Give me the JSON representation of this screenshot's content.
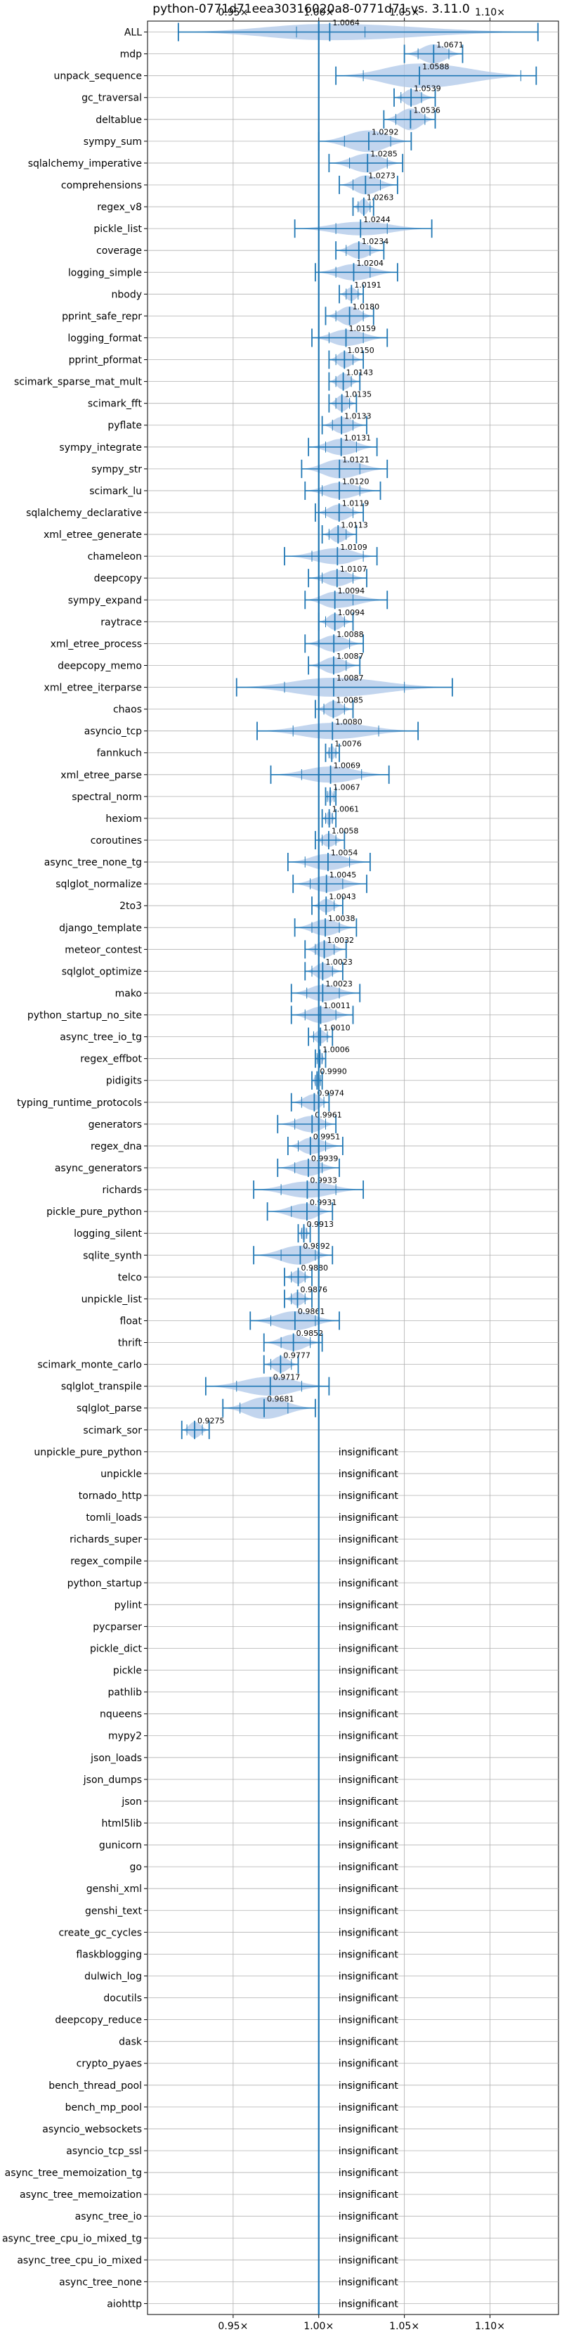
{
  "chart_data": {
    "type": "violin",
    "title": "python-0771d71eea30316020a8-0771d71 vs. 3.11.0",
    "xlabel": "",
    "ylabel": "",
    "xlim": [
      0.9,
      1.14
    ],
    "x_ticks": [
      0.95,
      1.0,
      1.05,
      1.1
    ],
    "x_tick_labels": [
      "0.95×",
      "1.00×",
      "1.05×",
      "1.10×"
    ],
    "grid": true,
    "reference_line": 1.0,
    "color": "#1f77b4",
    "fill_color": "#aec7e8",
    "insignificant_label": "insignificant",
    "benchmarks": [
      {
        "name": "ALL",
        "mean": 1.0064,
        "min": 0.918,
        "max": 1.128,
        "q1": 0.987,
        "q3": 1.027,
        "width": 0.6
      },
      {
        "name": "mdp",
        "mean": 1.0671,
        "min": 1.05,
        "max": 1.084,
        "q1": 1.058,
        "q3": 1.076,
        "width": 0.7
      },
      {
        "name": "unpack_sequence",
        "mean": 1.0588,
        "min": 1.01,
        "max": 1.127,
        "q1": 1.026,
        "q3": 1.118,
        "width": 0.9
      },
      {
        "name": "gc_traversal",
        "mean": 1.0539,
        "min": 1.044,
        "max": 1.068,
        "q1": 1.048,
        "q3": 1.06,
        "width": 0.6
      },
      {
        "name": "deltablue",
        "mean": 1.0536,
        "min": 1.038,
        "max": 1.068,
        "q1": 1.045,
        "q3": 1.062,
        "width": 0.8
      },
      {
        "name": "sympy_sum",
        "mean": 1.0292,
        "min": 1.0,
        "max": 1.054,
        "q1": 1.015,
        "q3": 1.042,
        "width": 0.8
      },
      {
        "name": "sqlalchemy_imperative",
        "mean": 1.0285,
        "min": 1.006,
        "max": 1.049,
        "q1": 1.018,
        "q3": 1.04,
        "width": 0.7
      },
      {
        "name": "comprehensions",
        "mean": 1.0273,
        "min": 1.012,
        "max": 1.046,
        "q1": 1.02,
        "q3": 1.036,
        "width": 0.7
      },
      {
        "name": "regex_v8",
        "mean": 1.0263,
        "min": 1.02,
        "max": 1.032,
        "q1": 1.023,
        "q3": 1.03,
        "width": 0.6
      },
      {
        "name": "pickle_list",
        "mean": 1.0244,
        "min": 0.986,
        "max": 1.066,
        "q1": 1.01,
        "q3": 1.04,
        "width": 0.5
      },
      {
        "name": "coverage",
        "mean": 1.0234,
        "min": 1.01,
        "max": 1.038,
        "q1": 1.016,
        "q3": 1.03,
        "width": 0.6
      },
      {
        "name": "logging_simple",
        "mean": 1.0204,
        "min": 0.998,
        "max": 1.046,
        "q1": 1.01,
        "q3": 1.03,
        "width": 0.6
      },
      {
        "name": "nbody",
        "mean": 1.0191,
        "min": 1.012,
        "max": 1.026,
        "q1": 1.016,
        "q3": 1.023,
        "width": 0.5
      },
      {
        "name": "pprint_safe_repr",
        "mean": 1.018,
        "min": 1.004,
        "max": 1.032,
        "q1": 1.01,
        "q3": 1.026,
        "width": 0.7
      },
      {
        "name": "logging_format",
        "mean": 1.0159,
        "min": 0.996,
        "max": 1.04,
        "q1": 1.006,
        "q3": 1.026,
        "width": 0.6
      },
      {
        "name": "pprint_pformat",
        "mean": 1.015,
        "min": 1.006,
        "max": 1.026,
        "q1": 1.01,
        "q3": 1.02,
        "width": 0.6
      },
      {
        "name": "scimark_sparse_mat_mult",
        "mean": 1.0143,
        "min": 1.006,
        "max": 1.024,
        "q1": 1.01,
        "q3": 1.019,
        "width": 0.6
      },
      {
        "name": "scimark_fft",
        "mean": 1.0135,
        "min": 1.006,
        "max": 1.022,
        "q1": 1.01,
        "q3": 1.018,
        "width": 0.6
      },
      {
        "name": "pyflate",
        "mean": 1.0133,
        "min": 1.002,
        "max": 1.028,
        "q1": 1.008,
        "q3": 1.02,
        "width": 0.6
      },
      {
        "name": "sympy_integrate",
        "mean": 1.0131,
        "min": 0.994,
        "max": 1.034,
        "q1": 1.004,
        "q3": 1.022,
        "width": 0.6
      },
      {
        "name": "sympy_str",
        "mean": 1.0121,
        "min": 0.99,
        "max": 1.04,
        "q1": 1.0,
        "q3": 1.024,
        "width": 0.7
      },
      {
        "name": "scimark_lu",
        "mean": 1.012,
        "min": 0.992,
        "max": 1.036,
        "q1": 1.002,
        "q3": 1.024,
        "width": 0.6
      },
      {
        "name": "sqlalchemy_declarative",
        "mean": 1.0119,
        "min": 0.998,
        "max": 1.026,
        "q1": 1.004,
        "q3": 1.02,
        "width": 0.6
      },
      {
        "name": "xml_etree_generate",
        "mean": 1.0113,
        "min": 1.002,
        "max": 1.022,
        "q1": 1.006,
        "q3": 1.016,
        "width": 0.6
      },
      {
        "name": "chameleon",
        "mean": 1.0109,
        "min": 0.98,
        "max": 1.034,
        "q1": 0.996,
        "q3": 1.026,
        "width": 0.6
      },
      {
        "name": "deepcopy",
        "mean": 1.0107,
        "min": 0.994,
        "max": 1.028,
        "q1": 1.002,
        "q3": 1.02,
        "width": 0.6
      },
      {
        "name": "sympy_expand",
        "mean": 1.0094,
        "min": 0.992,
        "max": 1.04,
        "q1": 1.0,
        "q3": 1.02,
        "width": 0.6
      },
      {
        "name": "raytrace",
        "mean": 1.0094,
        "min": 1.0,
        "max": 1.02,
        "q1": 1.004,
        "q3": 1.015,
        "width": 0.6
      },
      {
        "name": "xml_etree_process",
        "mean": 1.0088,
        "min": 0.992,
        "max": 1.026,
        "q1": 1.0,
        "q3": 1.018,
        "width": 0.6
      },
      {
        "name": "deepcopy_memo",
        "mean": 1.0087,
        "min": 0.994,
        "max": 1.024,
        "q1": 1.0,
        "q3": 1.016,
        "width": 0.6
      },
      {
        "name": "xml_etree_iterparse",
        "mean": 1.0087,
        "min": 0.952,
        "max": 1.078,
        "q1": 0.98,
        "q3": 1.05,
        "width": 0.7
      },
      {
        "name": "chaos",
        "mean": 1.0085,
        "min": 0.998,
        "max": 1.02,
        "q1": 1.003,
        "q3": 1.015,
        "width": 0.6
      },
      {
        "name": "asyncio_tcp",
        "mean": 1.008,
        "min": 0.964,
        "max": 1.058,
        "q1": 0.985,
        "q3": 1.035,
        "width": 0.6
      },
      {
        "name": "fannkuch",
        "mean": 1.0076,
        "min": 1.004,
        "max": 1.012,
        "q1": 1.006,
        "q3": 1.01,
        "width": 0.5
      },
      {
        "name": "xml_etree_parse",
        "mean": 1.0069,
        "min": 0.972,
        "max": 1.041,
        "q1": 0.99,
        "q3": 1.025,
        "width": 0.6
      },
      {
        "name": "spectral_norm",
        "mean": 1.0067,
        "min": 1.004,
        "max": 1.01,
        "q1": 1.005,
        "q3": 1.009,
        "width": 0.5
      },
      {
        "name": "hexiom",
        "mean": 1.0061,
        "min": 1.002,
        "max": 1.01,
        "q1": 1.004,
        "q3": 1.008,
        "width": 0.5
      },
      {
        "name": "coroutines",
        "mean": 1.0058,
        "min": 0.998,
        "max": 1.015,
        "q1": 1.002,
        "q3": 1.01,
        "width": 0.5
      },
      {
        "name": "async_tree_none_tg",
        "mean": 1.0054,
        "min": 0.982,
        "max": 1.03,
        "q1": 0.992,
        "q3": 1.018,
        "width": 0.6
      },
      {
        "name": "sqlglot_normalize",
        "mean": 1.0045,
        "min": 0.985,
        "max": 1.028,
        "q1": 0.995,
        "q3": 1.014,
        "width": 0.6
      },
      {
        "name": "2to3",
        "mean": 1.0043,
        "min": 0.996,
        "max": 1.014,
        "q1": 1.0,
        "q3": 1.009,
        "width": 0.5
      },
      {
        "name": "django_template",
        "mean": 1.0038,
        "min": 0.986,
        "max": 1.022,
        "q1": 0.996,
        "q3": 1.012,
        "width": 0.6
      },
      {
        "name": "meteor_contest",
        "mean": 1.0032,
        "min": 0.992,
        "max": 1.016,
        "q1": 0.998,
        "q3": 1.009,
        "width": 0.6
      },
      {
        "name": "sqlglot_optimize",
        "mean": 1.0023,
        "min": 0.992,
        "max": 1.014,
        "q1": 0.996,
        "q3": 1.008,
        "width": 0.6
      },
      {
        "name": "mako",
        "mean": 1.0023,
        "min": 0.984,
        "max": 1.024,
        "q1": 0.993,
        "q3": 1.012,
        "width": 0.6
      },
      {
        "name": "python_startup_no_site",
        "mean": 1.0011,
        "min": 0.984,
        "max": 1.02,
        "q1": 0.992,
        "q3": 1.01,
        "width": 0.6
      },
      {
        "name": "async_tree_io_tg",
        "mean": 1.001,
        "min": 0.994,
        "max": 1.008,
        "q1": 0.997,
        "q3": 1.005,
        "width": 0.5
      },
      {
        "name": "regex_effbot",
        "mean": 1.0006,
        "min": 0.998,
        "max": 1.004,
        "q1": 0.999,
        "q3": 1.002,
        "width": 0.5
      },
      {
        "name": "pidigits",
        "mean": 0.999,
        "min": 0.996,
        "max": 1.002,
        "q1": 0.998,
        "q3": 1.001,
        "width": 0.5
      },
      {
        "name": "typing_runtime_protocols",
        "mean": 0.9974,
        "min": 0.984,
        "max": 1.006,
        "q1": 0.99,
        "q3": 1.003,
        "width": 0.6
      },
      {
        "name": "generators",
        "mean": 0.9961,
        "min": 0.976,
        "max": 1.01,
        "q1": 0.986,
        "q3": 1.004,
        "width": 0.6
      },
      {
        "name": "regex_dna",
        "mean": 0.9951,
        "min": 0.982,
        "max": 1.014,
        "q1": 0.988,
        "q3": 1.004,
        "width": 0.6
      },
      {
        "name": "async_generators",
        "mean": 0.9939,
        "min": 0.976,
        "max": 1.012,
        "q1": 0.986,
        "q3": 1.002,
        "width": 0.6
      },
      {
        "name": "richards",
        "mean": 0.9933,
        "min": 0.962,
        "max": 1.026,
        "q1": 0.978,
        "q3": 1.01,
        "width": 0.6
      },
      {
        "name": "pickle_pure_python",
        "mean": 0.9931,
        "min": 0.97,
        "max": 1.008,
        "q1": 0.984,
        "q3": 1.0,
        "width": 0.6
      },
      {
        "name": "logging_silent",
        "mean": 0.9913,
        "min": 0.988,
        "max": 0.995,
        "q1": 0.99,
        "q3": 0.993,
        "width": 0.5
      },
      {
        "name": "sqlite_synth",
        "mean": 0.9892,
        "min": 0.962,
        "max": 1.008,
        "q1": 0.978,
        "q3": 0.998,
        "width": 0.7
      },
      {
        "name": "telco",
        "mean": 0.988,
        "min": 0.98,
        "max": 0.996,
        "q1": 0.984,
        "q3": 0.992,
        "width": 0.5
      },
      {
        "name": "unpickle_list",
        "mean": 0.9876,
        "min": 0.98,
        "max": 0.996,
        "q1": 0.984,
        "q3": 0.992,
        "width": 0.5
      },
      {
        "name": "float",
        "mean": 0.9861,
        "min": 0.96,
        "max": 1.012,
        "q1": 0.972,
        "q3": 0.998,
        "width": 0.7
      },
      {
        "name": "thrift",
        "mean": 0.9852,
        "min": 0.968,
        "max": 1.002,
        "q1": 0.978,
        "q3": 0.995,
        "width": 0.6
      },
      {
        "name": "scimark_monte_carlo",
        "mean": 0.9777,
        "min": 0.968,
        "max": 0.988,
        "q1": 0.972,
        "q3": 0.984,
        "width": 0.6
      },
      {
        "name": "sqlglot_transpile",
        "mean": 0.9717,
        "min": 0.934,
        "max": 1.006,
        "q1": 0.952,
        "q3": 0.99,
        "width": 0.7
      },
      {
        "name": "sqlglot_parse",
        "mean": 0.9681,
        "min": 0.944,
        "max": 0.998,
        "q1": 0.954,
        "q3": 0.982,
        "width": 0.8
      },
      {
        "name": "scimark_sor",
        "mean": 0.9275,
        "min": 0.92,
        "max": 0.936,
        "q1": 0.923,
        "q3": 0.932,
        "width": 0.6
      },
      {
        "name": "unpickle_pure_python",
        "insignificant": true
      },
      {
        "name": "unpickle",
        "insignificant": true
      },
      {
        "name": "tornado_http",
        "insignificant": true
      },
      {
        "name": "tomli_loads",
        "insignificant": true
      },
      {
        "name": "richards_super",
        "insignificant": true
      },
      {
        "name": "regex_compile",
        "insignificant": true
      },
      {
        "name": "python_startup",
        "insignificant": true
      },
      {
        "name": "pylint",
        "insignificant": true
      },
      {
        "name": "pycparser",
        "insignificant": true
      },
      {
        "name": "pickle_dict",
        "insignificant": true
      },
      {
        "name": "pickle",
        "insignificant": true
      },
      {
        "name": "pathlib",
        "insignificant": true
      },
      {
        "name": "nqueens",
        "insignificant": true
      },
      {
        "name": "mypy2",
        "insignificant": true
      },
      {
        "name": "json_loads",
        "insignificant": true
      },
      {
        "name": "json_dumps",
        "insignificant": true
      },
      {
        "name": "json",
        "insignificant": true
      },
      {
        "name": "html5lib",
        "insignificant": true
      },
      {
        "name": "gunicorn",
        "insignificant": true
      },
      {
        "name": "go",
        "insignificant": true
      },
      {
        "name": "genshi_xml",
        "insignificant": true
      },
      {
        "name": "genshi_text",
        "insignificant": true
      },
      {
        "name": "create_gc_cycles",
        "insignificant": true
      },
      {
        "name": "flaskblogging",
        "insignificant": true
      },
      {
        "name": "dulwich_log",
        "insignificant": true
      },
      {
        "name": "docutils",
        "insignificant": true
      },
      {
        "name": "deepcopy_reduce",
        "insignificant": true
      },
      {
        "name": "dask",
        "insignificant": true
      },
      {
        "name": "crypto_pyaes",
        "insignificant": true
      },
      {
        "name": "bench_thread_pool",
        "insignificant": true
      },
      {
        "name": "bench_mp_pool",
        "insignificant": true
      },
      {
        "name": "asyncio_websockets",
        "insignificant": true
      },
      {
        "name": "asyncio_tcp_ssl",
        "insignificant": true
      },
      {
        "name": "async_tree_memoization_tg",
        "insignificant": true
      },
      {
        "name": "async_tree_memoization",
        "insignificant": true
      },
      {
        "name": "async_tree_io",
        "insignificant": true
      },
      {
        "name": "async_tree_cpu_io_mixed_tg",
        "insignificant": true
      },
      {
        "name": "async_tree_cpu_io_mixed",
        "insignificant": true
      },
      {
        "name": "async_tree_none",
        "insignificant": true
      },
      {
        "name": "aiohttp",
        "insignificant": true
      }
    ]
  }
}
